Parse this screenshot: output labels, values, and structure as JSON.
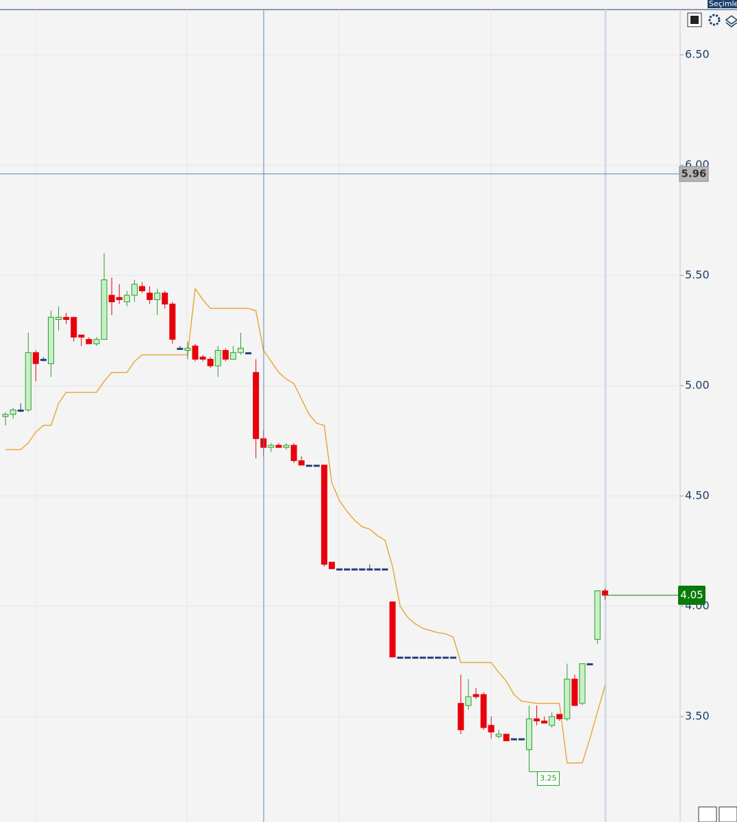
{
  "ui": {
    "top_right_label": "Seçimle"
  },
  "chart_data": {
    "type": "candlestick",
    "ylim": [
      3.022,
      6.705
    ],
    "yticks": [
      {
        "value": 3.5,
        "label": "3.50"
      },
      {
        "value": 4,
        "label": "4.00"
      },
      {
        "value": 4.5,
        "label": "4.50"
      },
      {
        "value": 5,
        "label": "5.00"
      },
      {
        "value": 5.5,
        "label": "5.50"
      },
      {
        "value": 6,
        "label": "6.00"
      },
      {
        "value": 6.5,
        "label": "6.50"
      }
    ],
    "grid": true,
    "up_color": "#2a9d2a",
    "down_color": "#e8000b",
    "crosshair_price": 5.96,
    "open": [
      4.86,
      4.87,
      4.89,
      4.89,
      5.15,
      5.12,
      5.1,
      5.3,
      5.31,
      5.31,
      5.23,
      5.21,
      5.19,
      5.21,
      5.41,
      5.4,
      5.38,
      5.41,
      5.45,
      5.42,
      5.39,
      5.42,
      5.37,
      5.17,
      5.16,
      5.18,
      5.13,
      5.12,
      5.09,
      5.16,
      5.12,
      5.15,
      5.15,
      5.06,
      4.76,
      4.72,
      4.73,
      4.72,
      4.73,
      4.66,
      4.64,
      4.64,
      4.64,
      4.2,
      4.17,
      4.17,
      4.17,
      4.17,
      4.17,
      4.17,
      4.17,
      4.02,
      3.77,
      3.77,
      3.77,
      3.77,
      3.77,
      3.77,
      3.77,
      3.77,
      3.56,
      3.55,
      3.6,
      3.6,
      3.46,
      3.41,
      3.42,
      3.4,
      3.4,
      3.35,
      3.49,
      3.48,
      3.46,
      3.51,
      3.49,
      3.67,
      3.56,
      3.74,
      3.85,
      4.07
    ],
    "high": [
      4.88,
      4.9,
      4.92,
      5.24,
      5.16,
      5.13,
      5.34,
      5.36,
      5.33,
      5.31,
      5.23,
      5.22,
      5.22,
      5.6,
      5.49,
      5.46,
      5.43,
      5.48,
      5.47,
      5.45,
      5.44,
      5.43,
      5.38,
      5.18,
      5.2,
      5.19,
      5.14,
      5.13,
      5.18,
      5.17,
      5.18,
      5.24,
      5.15,
      5.12,
      4.8,
      4.74,
      4.74,
      4.74,
      4.74,
      4.68,
      4.64,
      4.64,
      4.64,
      4.2,
      4.17,
      4.17,
      4.17,
      4.17,
      4.19,
      4.17,
      4.17,
      4.02,
      3.77,
      3.77,
      3.77,
      3.77,
      3.77,
      3.77,
      3.77,
      3.77,
      3.69,
      3.67,
      3.63,
      3.61,
      3.5,
      3.44,
      3.42,
      3.4,
      3.4,
      3.55,
      3.55,
      3.5,
      3.52,
      3.51,
      3.74,
      3.69,
      3.74,
      3.74,
      4.07,
      4.08
    ],
    "low": [
      4.82,
      4.85,
      4.88,
      4.88,
      5.02,
      5.11,
      5.04,
      5.25,
      5.28,
      5.2,
      5.18,
      5.19,
      5.18,
      5.21,
      5.32,
      5.37,
      5.36,
      5.38,
      5.42,
      5.37,
      5.32,
      5.35,
      5.19,
      5.17,
      5.12,
      5.11,
      5.11,
      5.08,
      5.04,
      5.11,
      5.12,
      5.14,
      5.15,
      4.67,
      4.68,
      4.7,
      4.72,
      4.71,
      4.65,
      4.64,
      4.64,
      4.64,
      4.18,
      4.17,
      4.17,
      4.17,
      4.17,
      4.17,
      4.17,
      4.17,
      4.17,
      3.77,
      3.77,
      3.77,
      3.77,
      3.77,
      3.77,
      3.77,
      3.77,
      3.77,
      3.42,
      3.53,
      3.58,
      3.44,
      3.4,
      3.4,
      3.39,
      3.4,
      3.4,
      3.25,
      3.46,
      3.47,
      3.45,
      3.48,
      3.48,
      3.55,
      3.55,
      3.74,
      3.83,
      4.03
    ],
    "close": [
      4.87,
      4.89,
      4.89,
      5.15,
      5.1,
      5.12,
      5.31,
      5.31,
      5.3,
      5.22,
      5.22,
      5.19,
      5.21,
      5.48,
      5.38,
      5.39,
      5.41,
      5.46,
      5.43,
      5.39,
      5.42,
      5.37,
      5.21,
      5.17,
      5.17,
      5.12,
      5.12,
      5.09,
      5.16,
      5.12,
      5.15,
      5.17,
      5.15,
      4.76,
      4.72,
      4.73,
      4.72,
      4.73,
      4.66,
      4.64,
      4.64,
      4.64,
      4.19,
      4.17,
      4.17,
      4.17,
      4.17,
      4.17,
      4.17,
      4.17,
      4.17,
      3.77,
      3.77,
      3.77,
      3.77,
      3.77,
      3.77,
      3.77,
      3.77,
      3.77,
      3.44,
      3.59,
      3.59,
      3.45,
      3.43,
      3.42,
      3.39,
      3.4,
      3.4,
      3.49,
      3.48,
      3.47,
      3.5,
      3.49,
      3.67,
      3.55,
      3.74,
      3.74,
      4.07,
      4.05
    ],
    "line": [
      4.71,
      4.71,
      4.71,
      4.74,
      4.79,
      4.82,
      4.82,
      4.92,
      4.97,
      4.97,
      4.97,
      4.97,
      4.97,
      5.02,
      5.06,
      5.06,
      5.06,
      5.11,
      5.14,
      5.14,
      5.14,
      5.14,
      5.14,
      5.14,
      5.14,
      5.44,
      5.39,
      5.35,
      5.35,
      5.35,
      5.35,
      5.35,
      5.35,
      5.34,
      5.16,
      5.11,
      5.06,
      5.03,
      5.01,
      4.94,
      4.87,
      4.83,
      4.82,
      4.56,
      4.48,
      4.43,
      4.39,
      4.36,
      4.35,
      4.32,
      4.3,
      4.18,
      4.0,
      3.95,
      3.92,
      3.9,
      3.89,
      3.88,
      3.875,
      3.86,
      3.745,
      3.745,
      3.745,
      3.745,
      3.745,
      3.7,
      3.66,
      3.6,
      3.57,
      3.565,
      3.56,
      3.56,
      3.56,
      3.56,
      3.29,
      3.29,
      3.29,
      3.4,
      3.52,
      3.64
    ],
    "line_color": "#e8a93c"
  }
}
